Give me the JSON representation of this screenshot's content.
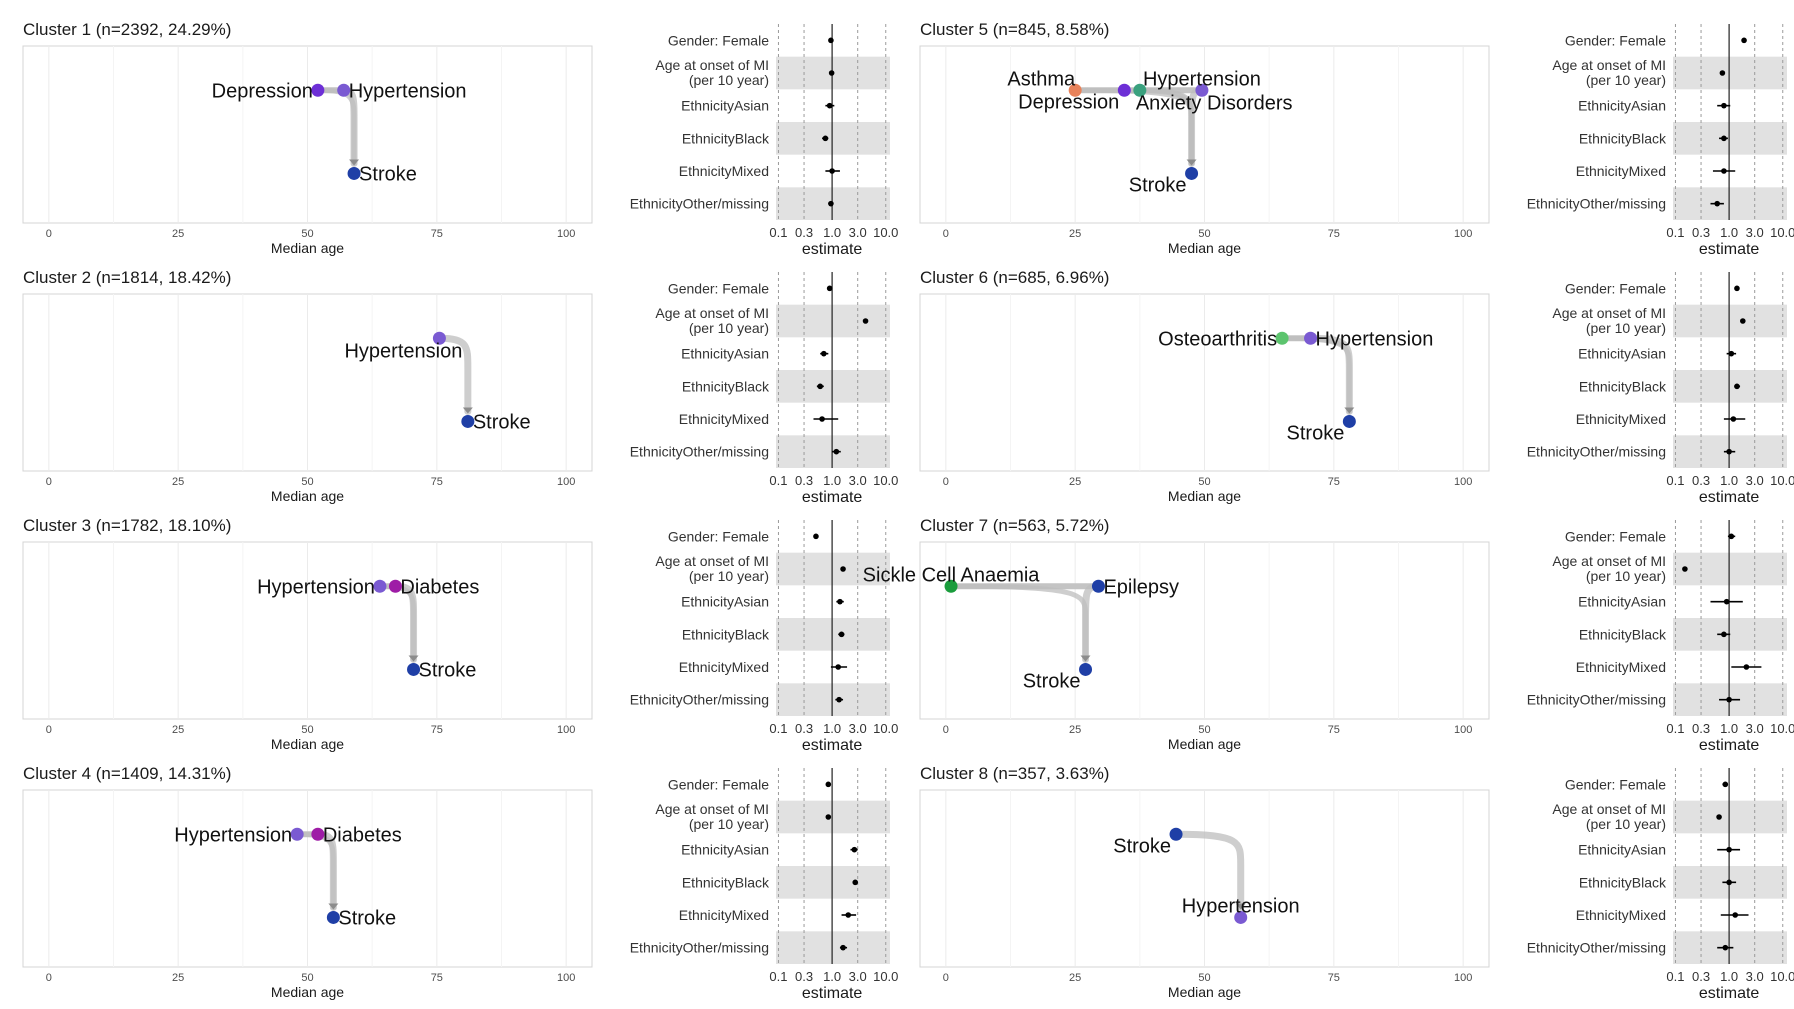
{
  "chart_data": {
    "type": "trajectory+forest",
    "trajectory_axis": {
      "xlabel": "Median age",
      "xlim": [
        -5,
        105
      ],
      "ticks": [
        0,
        25,
        50,
        75,
        100
      ],
      "grid": true
    },
    "forest_axis": {
      "xlabel": "estimate",
      "scale": "log",
      "xlim": [
        0.09,
        12
      ],
      "ticks": [
        0.1,
        0.3,
        1.0,
        3.0,
        10.0
      ],
      "tick_labels": [
        "0.1",
        "0.3",
        "1.0",
        "3.0",
        "10.0"
      ],
      "reference_line": 1.0,
      "dashed_lines": [
        0.1,
        0.3,
        3.0,
        10.0
      ]
    },
    "covariates": [
      "Gender: Female",
      "Age at onset of MI\n(per 10 year)",
      "EthnicityAsian",
      "EthnicityBlack",
      "EthnicityMixed",
      "EthnicityOther/missing"
    ],
    "clusters": [
      {
        "title": "Cluster 1 (n=2392, 24.29%)",
        "nodes": [
          {
            "label": "Depression",
            "age": 52,
            "level": 0.25,
            "color": "#6d2fd6",
            "side": "left"
          },
          {
            "label": "Hypertension",
            "age": 57,
            "level": 0.25,
            "color": "#7a5ad2",
            "side": "right"
          },
          {
            "label": "Stroke",
            "age": 59,
            "level": 0.72,
            "color": "#1f3fa6",
            "side": "right"
          }
        ],
        "forest": [
          {
            "est": 0.95,
            "lo": 0.9,
            "hi": 1.0
          },
          {
            "est": 0.98,
            "lo": 0.95,
            "hi": 1.02
          },
          {
            "est": 0.9,
            "lo": 0.75,
            "hi": 1.1
          },
          {
            "est": 0.75,
            "lo": 0.65,
            "hi": 0.85
          },
          {
            "est": 1.0,
            "lo": 0.75,
            "hi": 1.4
          },
          {
            "est": 0.95,
            "lo": 0.85,
            "hi": 1.05
          }
        ]
      },
      {
        "title": "Cluster 2 (n=1814, 18.42%)",
        "nodes": [
          {
            "label": "Hypertension",
            "age": 75.5,
            "level": 0.25,
            "color": "#7a5ad2",
            "side": "below"
          },
          {
            "label": "Stroke",
            "age": 81,
            "level": 0.72,
            "color": "#1f3fa6",
            "side": "right"
          }
        ],
        "forest": [
          {
            "est": 0.9,
            "lo": 0.85,
            "hi": 0.95
          },
          {
            "est": 4.2,
            "lo": 4.0,
            "hi": 4.4
          },
          {
            "est": 0.7,
            "lo": 0.6,
            "hi": 0.85
          },
          {
            "est": 0.6,
            "lo": 0.52,
            "hi": 0.7
          },
          {
            "est": 0.65,
            "lo": 0.45,
            "hi": 1.3
          },
          {
            "est": 1.2,
            "lo": 1.0,
            "hi": 1.45
          }
        ]
      },
      {
        "title": "Cluster 3 (n=1782, 18.10%)",
        "nodes": [
          {
            "label": "Hypertension",
            "age": 64,
            "level": 0.25,
            "color": "#7a5ad2",
            "side": "left"
          },
          {
            "label": "Diabetes",
            "age": 67,
            "level": 0.25,
            "color": "#9e1ca6",
            "side": "right"
          },
          {
            "label": "Stroke",
            "age": 70.5,
            "level": 0.72,
            "color": "#1f3fa6",
            "side": "right"
          }
        ],
        "forest": [
          {
            "est": 0.5,
            "lo": 0.46,
            "hi": 0.55
          },
          {
            "est": 1.6,
            "lo": 1.5,
            "hi": 1.7
          },
          {
            "est": 1.4,
            "lo": 1.2,
            "hi": 1.65
          },
          {
            "est": 1.5,
            "lo": 1.3,
            "hi": 1.7
          },
          {
            "est": 1.3,
            "lo": 0.95,
            "hi": 1.9
          },
          {
            "est": 1.35,
            "lo": 1.15,
            "hi": 1.6
          }
        ]
      },
      {
        "title": "Cluster 4 (n=1409, 14.31%)",
        "nodes": [
          {
            "label": "Hypertension",
            "age": 48,
            "level": 0.25,
            "color": "#7a5ad2",
            "side": "left"
          },
          {
            "label": "Diabetes",
            "age": 52,
            "level": 0.25,
            "color": "#9e1ca6",
            "side": "right"
          },
          {
            "label": "Stroke",
            "age": 55,
            "level": 0.72,
            "color": "#1f3fa6",
            "side": "right"
          }
        ],
        "forest": [
          {
            "est": 0.85,
            "lo": 0.8,
            "hi": 0.9
          },
          {
            "est": 0.85,
            "lo": 0.82,
            "hi": 0.88
          },
          {
            "est": 2.6,
            "lo": 2.2,
            "hi": 3.0
          },
          {
            "est": 2.7,
            "lo": 2.4,
            "hi": 3.0
          },
          {
            "est": 2.0,
            "lo": 1.5,
            "hi": 2.8
          },
          {
            "est": 1.6,
            "lo": 1.4,
            "hi": 1.9
          }
        ]
      },
      {
        "title": "Cluster 5 (n=845, 8.58%)",
        "nodes": [
          {
            "label": "Asthma",
            "age": 25,
            "level": 0.25,
            "color": "#e8825a",
            "side": "aboveleft"
          },
          {
            "label": "Depression",
            "age": 34.5,
            "level": 0.25,
            "color": "#6d2fd6",
            "side": "belowleft"
          },
          {
            "label": "Anxiety Disorders",
            "age": 37.5,
            "level": 0.25,
            "color": "#3aa17e",
            "side": "belowright"
          },
          {
            "label": "Hypertension",
            "age": 49.5,
            "level": 0.25,
            "color": "#7a5ad2",
            "side": "above"
          },
          {
            "label": "Stroke",
            "age": 47.5,
            "level": 0.72,
            "color": "#1f3fa6",
            "side": "belowleft"
          }
        ],
        "forest": [
          {
            "est": 1.9,
            "lo": 1.75,
            "hi": 2.05
          },
          {
            "est": 0.75,
            "lo": 0.7,
            "hi": 0.8
          },
          {
            "est": 0.8,
            "lo": 0.6,
            "hi": 1.05
          },
          {
            "est": 0.8,
            "lo": 0.65,
            "hi": 0.95
          },
          {
            "est": 0.8,
            "lo": 0.5,
            "hi": 1.3
          },
          {
            "est": 0.6,
            "lo": 0.45,
            "hi": 0.8
          }
        ]
      },
      {
        "title": "Cluster 6 (n=685, 6.96%)",
        "nodes": [
          {
            "label": "Osteoarthritis",
            "age": 65,
            "level": 0.25,
            "color": "#5cc46e",
            "side": "left"
          },
          {
            "label": "Hypertension",
            "age": 70.5,
            "level": 0.25,
            "color": "#7a5ad2",
            "side": "right"
          },
          {
            "label": "Stroke",
            "age": 78,
            "level": 0.72,
            "color": "#1f3fa6",
            "side": "belowleft"
          }
        ],
        "forest": [
          {
            "est": 1.4,
            "lo": 1.3,
            "hi": 1.5
          },
          {
            "est": 1.8,
            "lo": 1.7,
            "hi": 1.9
          },
          {
            "est": 1.1,
            "lo": 0.9,
            "hi": 1.35
          },
          {
            "est": 1.4,
            "lo": 1.25,
            "hi": 1.6
          },
          {
            "est": 1.2,
            "lo": 0.8,
            "hi": 2.0
          },
          {
            "est": 1.0,
            "lo": 0.8,
            "hi": 1.3
          }
        ]
      },
      {
        "title": "Cluster 7 (n=563, 5.72%)",
        "nodes": [
          {
            "label": "Sickle Cell Anaemia",
            "age": 1,
            "level": 0.25,
            "color": "#1a9c3c",
            "side": "above"
          },
          {
            "label": "Epilepsy",
            "age": 29.5,
            "level": 0.25,
            "color": "#1f3fa6",
            "side": "right"
          },
          {
            "label": "Stroke",
            "age": 27,
            "level": 0.72,
            "color": "#1f3fa6",
            "side": "belowleft"
          }
        ],
        "forest": [
          {
            "est": 1.1,
            "lo": 0.95,
            "hi": 1.3
          },
          {
            "est": 0.15,
            "lo": 0.14,
            "hi": 0.16
          },
          {
            "est": 0.9,
            "lo": 0.45,
            "hi": 1.8
          },
          {
            "est": 0.8,
            "lo": 0.6,
            "hi": 1.05
          },
          {
            "est": 2.1,
            "lo": 1.1,
            "hi": 4.0
          },
          {
            "est": 1.0,
            "lo": 0.65,
            "hi": 1.6
          }
        ]
      },
      {
        "title": "Cluster 8 (n=357, 3.63%)",
        "nodes": [
          {
            "label": "Stroke",
            "age": 44.5,
            "level": 0.25,
            "color": "#1f3fa6",
            "side": "belowleft"
          },
          {
            "label": "Hypertension",
            "age": 57,
            "level": 0.72,
            "color": "#7a5ad2",
            "side": "above"
          }
        ],
        "forest": [
          {
            "est": 0.85,
            "lo": 0.75,
            "hi": 0.95
          },
          {
            "est": 0.65,
            "lo": 0.62,
            "hi": 0.68
          },
          {
            "est": 1.0,
            "lo": 0.6,
            "hi": 1.6
          },
          {
            "est": 1.0,
            "lo": 0.75,
            "hi": 1.35
          },
          {
            "est": 1.3,
            "lo": 0.7,
            "hi": 2.3
          },
          {
            "est": 0.85,
            "lo": 0.6,
            "hi": 1.2
          }
        ]
      }
    ]
  }
}
